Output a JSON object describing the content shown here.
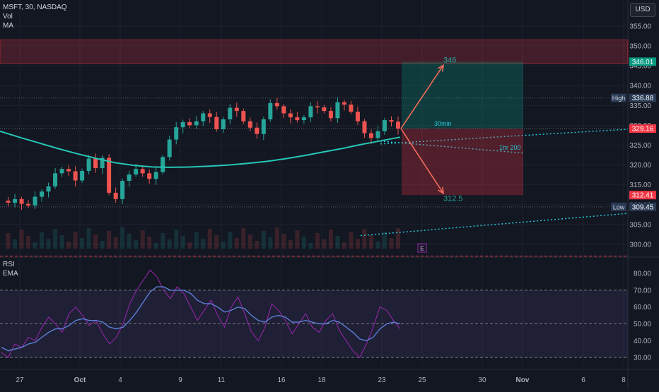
{
  "header": {
    "symbol_line": "MSFT, 30, NASDAQ",
    "vol_label": "Vol",
    "ma_label": "MA",
    "currency": "USD"
  },
  "rsi_panel": {
    "rsi_label": "RSI",
    "ema_label": "EMA"
  },
  "colors": {
    "background": "#131722",
    "up": "#26a69a",
    "down": "#ef5350",
    "ma": "#26c6b5",
    "rsi": "#9c27b0",
    "rsi_ema": "#5b7fd6",
    "projection_up": "#f26b5b",
    "projection_down": "#f26b5b"
  },
  "chart_data": [
    {
      "type": "candlestick",
      "title": "",
      "y_axis": {
        "ylim": [
          297.5,
          358
        ],
        "ticks": [
          300.0,
          305.0,
          310.0,
          315.0,
          320.0,
          325.0,
          330.0,
          335.0,
          340.0,
          345.0,
          350.0,
          355.0
        ]
      },
      "x_axis": {
        "ticks": [
          "27",
          "Oct",
          "4",
          "9",
          "11",
          "16",
          "18",
          "23",
          "25",
          "30",
          "Nov",
          "6",
          "8"
        ]
      },
      "price_labels": [
        {
          "label": "",
          "value": "346.01",
          "price": 346.01,
          "color": "#089981"
        },
        {
          "label": "High",
          "value": "336.88",
          "price": 336.88,
          "color": "#2a3a54"
        },
        {
          "label": "",
          "value": "329.21",
          "price": 329.21,
          "color": "#2a2e39"
        },
        {
          "label": "",
          "value": "329.16",
          "price": 329.16,
          "color": "#f23645"
        },
        {
          "label": "",
          "value": "312.41",
          "price": 312.41,
          "color": "#f23645"
        },
        {
          "label": "Low",
          "value": "309.45",
          "price": 309.45,
          "color": "#2a3a54"
        }
      ],
      "zones": [
        {
          "name": "resistance-zone",
          "from": 345.6,
          "to": 351.5
        }
      ],
      "position": {
        "entry": 329.16,
        "target": 346.01,
        "stop": 312.41
      },
      "projection_labels": [
        {
          "text": "346",
          "price": 346.0
        },
        {
          "text": "312.5",
          "price": 312.5
        }
      ],
      "ma_labels": [
        "30min",
        "1hr 200"
      ],
      "earnings_marker": "E",
      "candles_summary": "intraday 30-min MSFT, late Sep to Oct 24",
      "price_path": [
        311.0,
        310.5,
        311.4,
        310.2,
        309.8,
        312.0,
        313.3,
        314.6,
        317.9,
        319.0,
        318.4,
        316.1,
        318.5,
        321.6,
        319.2,
        321.8,
        313.0,
        311.4,
        316.0,
        317.6,
        319.0,
        317.9,
        316.5,
        318.2,
        322.0,
        326.4,
        329.5,
        330.8,
        330.0,
        331.0,
        333.0,
        332.1,
        329.0,
        331.5,
        334.4,
        333.6,
        331.0,
        329.4,
        327.8,
        331.5,
        335.6,
        334.8,
        333.0,
        332.0,
        331.3,
        332.0,
        334.8,
        334.5,
        333.6,
        331.8,
        335.8,
        335.2,
        333.4,
        331.0,
        328.0,
        326.8,
        328.5,
        331.3,
        330.9,
        329.16
      ],
      "ma_path": [
        328.5,
        327.0,
        325.6,
        324.2,
        322.9,
        321.7,
        320.6,
        319.9,
        319.5,
        319.4,
        319.5,
        319.7,
        320.0,
        320.4,
        320.9,
        321.6,
        322.4,
        323.3,
        324.2,
        325.2,
        326.1,
        327.0
      ]
    },
    {
      "type": "line",
      "title": "",
      "y_axis": {
        "ylim": [
          25,
          88
        ],
        "ticks": [
          30.0,
          40.0,
          50.0,
          60.0,
          70.0,
          80.0
        ]
      },
      "series": [
        {
          "name": "RSI",
          "values": [
            33,
            30,
            38,
            36,
            42,
            40,
            48,
            54,
            50,
            45,
            56,
            60,
            55,
            49,
            52,
            44,
            38,
            42,
            50,
            62,
            70,
            76,
            82,
            78,
            70,
            65,
            72,
            68,
            60,
            52,
            58,
            64,
            55,
            48,
            60,
            66,
            56,
            45,
            40,
            48,
            62,
            58,
            52,
            44,
            50,
            56,
            48,
            45,
            52,
            56,
            46,
            40,
            34,
            30,
            38,
            48,
            60,
            58,
            52,
            47
          ]
        },
        {
          "name": "EMA",
          "values": [
            36,
            34,
            35,
            36,
            38,
            39,
            42,
            45,
            47,
            47,
            49,
            52,
            53,
            52,
            52,
            51,
            48,
            47,
            48,
            52,
            57,
            63,
            69,
            72,
            72,
            70,
            70,
            70,
            68,
            64,
            62,
            62,
            60,
            57,
            58,
            60,
            59,
            55,
            52,
            51,
            54,
            55,
            54,
            51,
            51,
            52,
            51,
            50,
            50,
            52,
            51,
            48,
            45,
            41,
            40,
            42,
            47,
            50,
            51,
            50
          ]
        }
      ],
      "levels": [
        70,
        50,
        30
      ]
    }
  ]
}
